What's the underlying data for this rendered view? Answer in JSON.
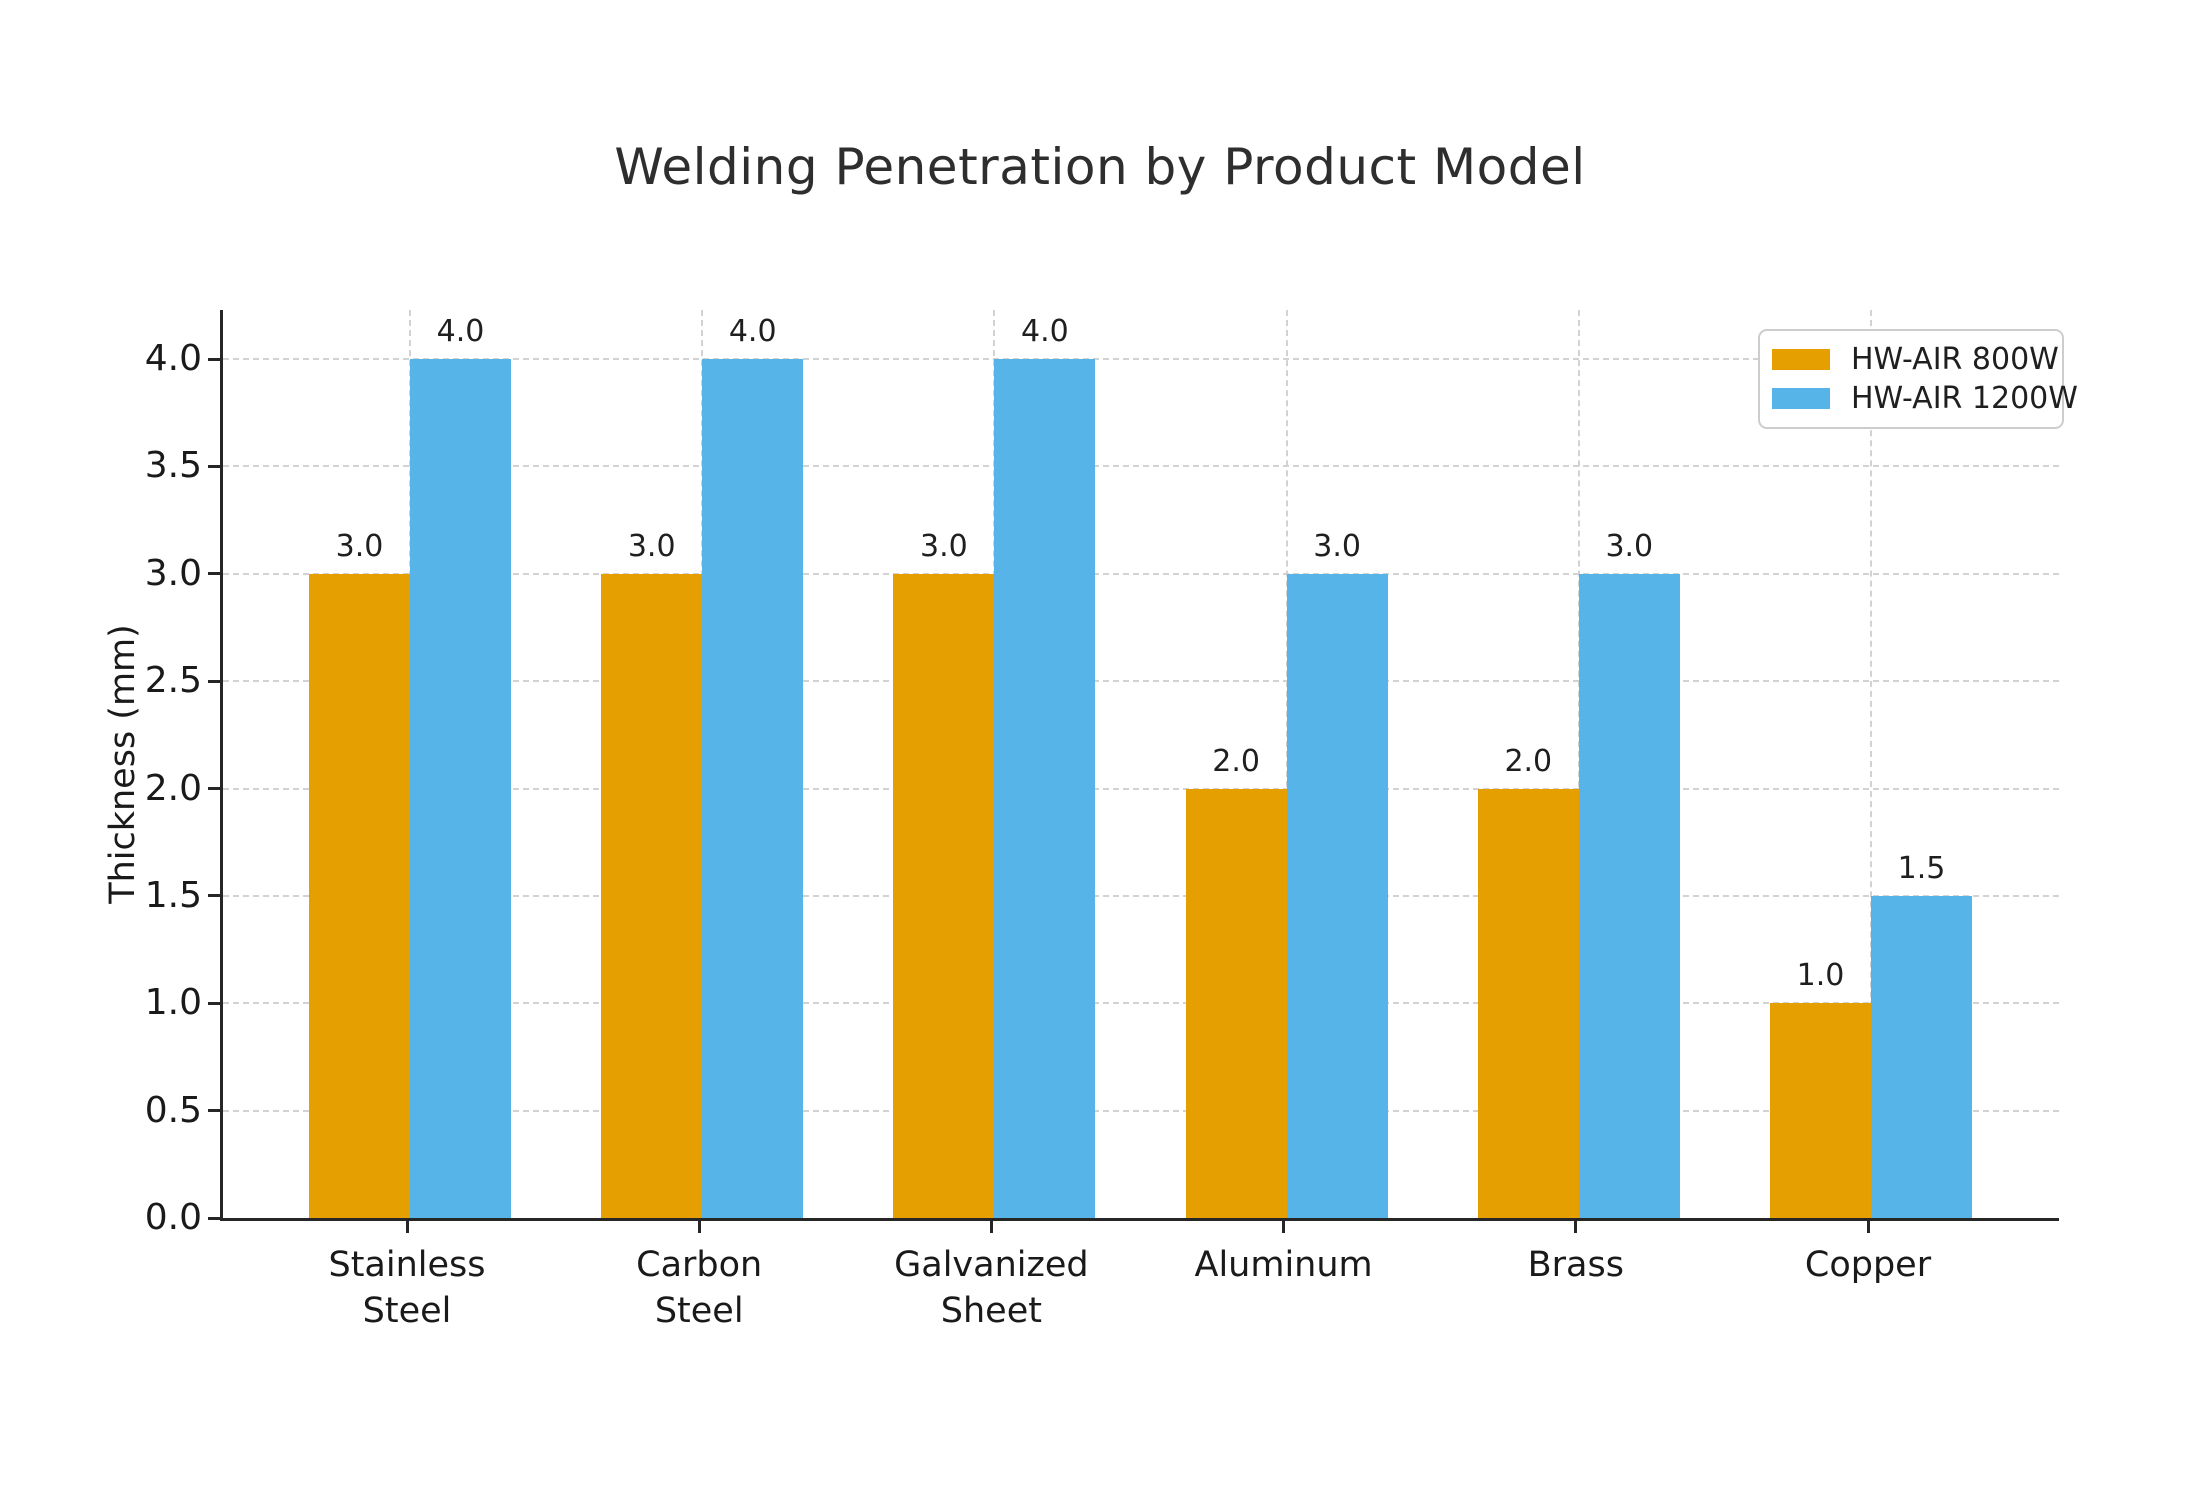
{
  "chart_data": {
    "type": "bar",
    "title": "Welding Penetration by Product Model",
    "xlabel": "",
    "ylabel": "Thickness (mm)",
    "categories": [
      "Stainless\nSteel",
      "Carbon\nSteel",
      "Galvanized\nSheet",
      "Aluminum",
      "Brass",
      "Copper"
    ],
    "series": [
      {
        "name": "HW-AIR 800W",
        "color": "#E69F00",
        "values": [
          3.0,
          3.0,
          3.0,
          2.0,
          2.0,
          1.0
        ]
      },
      {
        "name": "HW-AIR 1200W",
        "color": "#56B4E9",
        "values": [
          4.0,
          4.0,
          4.0,
          3.0,
          3.0,
          1.5
        ]
      }
    ],
    "bar_value_labels": [
      [
        "3.0",
        "3.0",
        "3.0",
        "2.0",
        "2.0",
        "1.0"
      ],
      [
        "4.0",
        "4.0",
        "4.0",
        "3.0",
        "3.0",
        "1.5"
      ]
    ],
    "yticks": [
      0.0,
      0.5,
      1.0,
      1.5,
      2.0,
      2.5,
      3.0,
      3.5,
      4.0
    ],
    "ytick_labels": [
      "0.0",
      "0.5",
      "1.0",
      "1.5",
      "2.0",
      "2.5",
      "3.0",
      "3.5",
      "4.0"
    ],
    "ylim": [
      0,
      4.23
    ],
    "grid": true,
    "grid_style": "dashed",
    "legend_position": "upper right",
    "colors": {
      "axis": "#262626",
      "grid": "#d2d2d2",
      "tick_text": "#1a1a1a",
      "title_text": "#2e2e2e",
      "background": "#ffffff"
    }
  }
}
